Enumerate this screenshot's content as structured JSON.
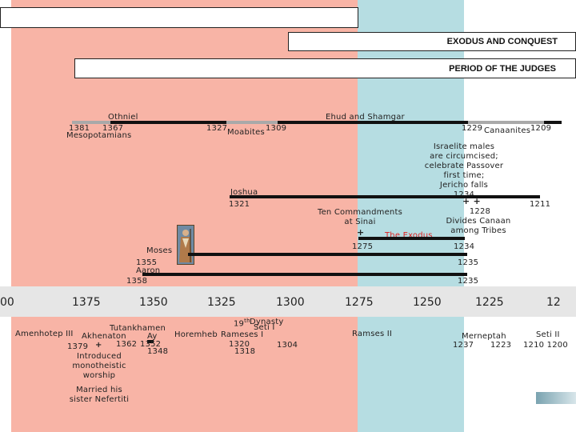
{
  "banners": {
    "exodus_conquest": "EXODUS AND CONQUEST",
    "period_judges": "PERIOD OF THE JUDGES"
  },
  "judges": {
    "othniel": "Othniel",
    "othniel_start": "1381",
    "othniel_end": "1367",
    "othniel_oppressor": "Mesopotamians",
    "ehud_shamgar": "Ehud and Shamgar",
    "ehud_start": "1327",
    "moabites": "Moabites",
    "ehud_end": "1309",
    "canaanites_start": "1229",
    "canaanites": "Canaanites",
    "canaanites_end": "1209"
  },
  "conquest": {
    "circumcision_note": [
      "Israelite males",
      "are circumcised;",
      "celebrate Passover",
      "first time;",
      "Jericho falls"
    ],
    "jericho_year": "1234",
    "plus_marks": "+ +",
    "divides_year": "1228",
    "divides_note": [
      "Divides Canaan",
      "among Tribes"
    ],
    "joshua": "Joshua",
    "joshua_birth": "1321",
    "joshua_end": "1211",
    "ten_commandments": [
      "Ten Commandments",
      "at Sinai"
    ],
    "plus": "+",
    "exodus": "The Exodus",
    "exodus_start": "1275",
    "exodus_end": "1234"
  },
  "moses_aaron": {
    "moses": "Moses",
    "moses_birth": "1355",
    "moses_end": "1235",
    "aaron": "Aaron",
    "aaron_birth": "1358",
    "aaron_end": "1235"
  },
  "axis": {
    "years": [
      "00",
      "1375",
      "1350",
      "1325",
      "1300",
      "1275",
      "1250",
      "1225",
      "12"
    ]
  },
  "egypt": {
    "amenhotep": "Amenhotep III",
    "tutankhamen": "Tutankhamen",
    "akhenaton": "Akhenaton",
    "ay": "Ay",
    "akh_start": "1379",
    "akh_plus": "+",
    "akh_1362": "1362",
    "akh_1352": "1352",
    "akh_1348": "1348",
    "akh_note": [
      "Introduced",
      "monotheistic",
      "worship"
    ],
    "akh_note2": [
      "Married his",
      "sister Nefertiti"
    ],
    "horemheb": "Horemheb",
    "dynasty": "19",
    "dynasty_sup": "th",
    "dynasty_word": "Dynasty",
    "seti1": "Seti I",
    "rameses1": "Rameses I",
    "r_1320": "1320",
    "r_1318": "1318",
    "r_1304": "1304",
    "ramses2": "Ramses II",
    "merneptah": "Merneptah",
    "m_1237": "1237",
    "m_1223": "1223",
    "seti2": "Seti II",
    "s2_years": "1210 1200"
  }
}
